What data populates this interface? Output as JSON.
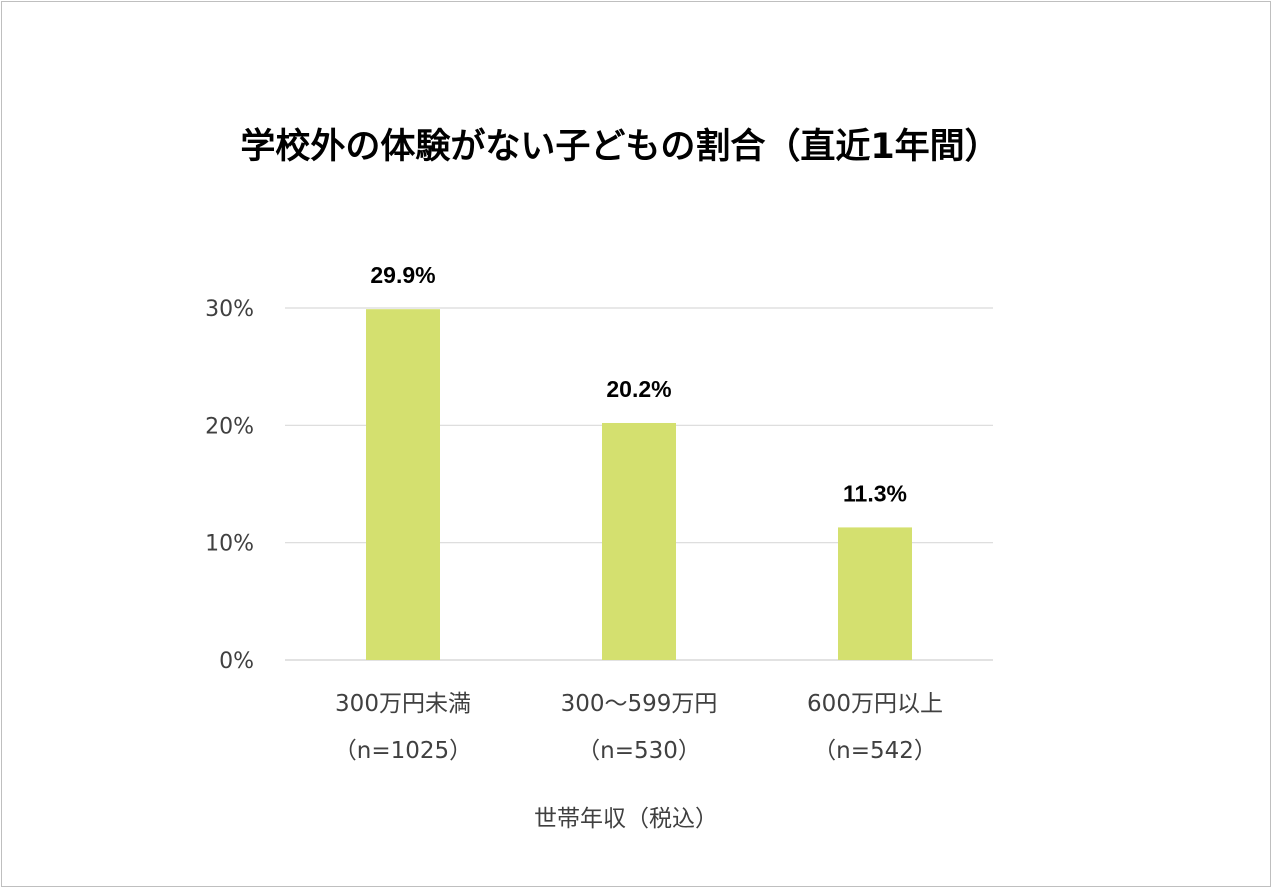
{
  "chart_data": {
    "type": "bar",
    "title": "学校外の体験がない子どもの割合（直近1年間）",
    "xlabel": "世帯年収（税込）",
    "ylabel": "",
    "categories": [
      {
        "label": "300万円未満",
        "n": "（n=1025）"
      },
      {
        "label": "300〜599万円",
        "n": "（n=530）"
      },
      {
        "label": "600万円以上",
        "n": "（n=542）"
      }
    ],
    "values": [
      29.9,
      20.2,
      11.3
    ],
    "data_labels": [
      "29.9%",
      "20.2%",
      "11.3%"
    ],
    "ylim": [
      0,
      30
    ],
    "yticks": [
      0,
      10,
      20,
      30
    ],
    "ytick_labels": [
      "0%",
      "10%",
      "20%",
      "30%"
    ],
    "grid": true,
    "legend": "none",
    "colors": {
      "bar": "#d4e06f",
      "grid": "#d9d9d9"
    }
  }
}
